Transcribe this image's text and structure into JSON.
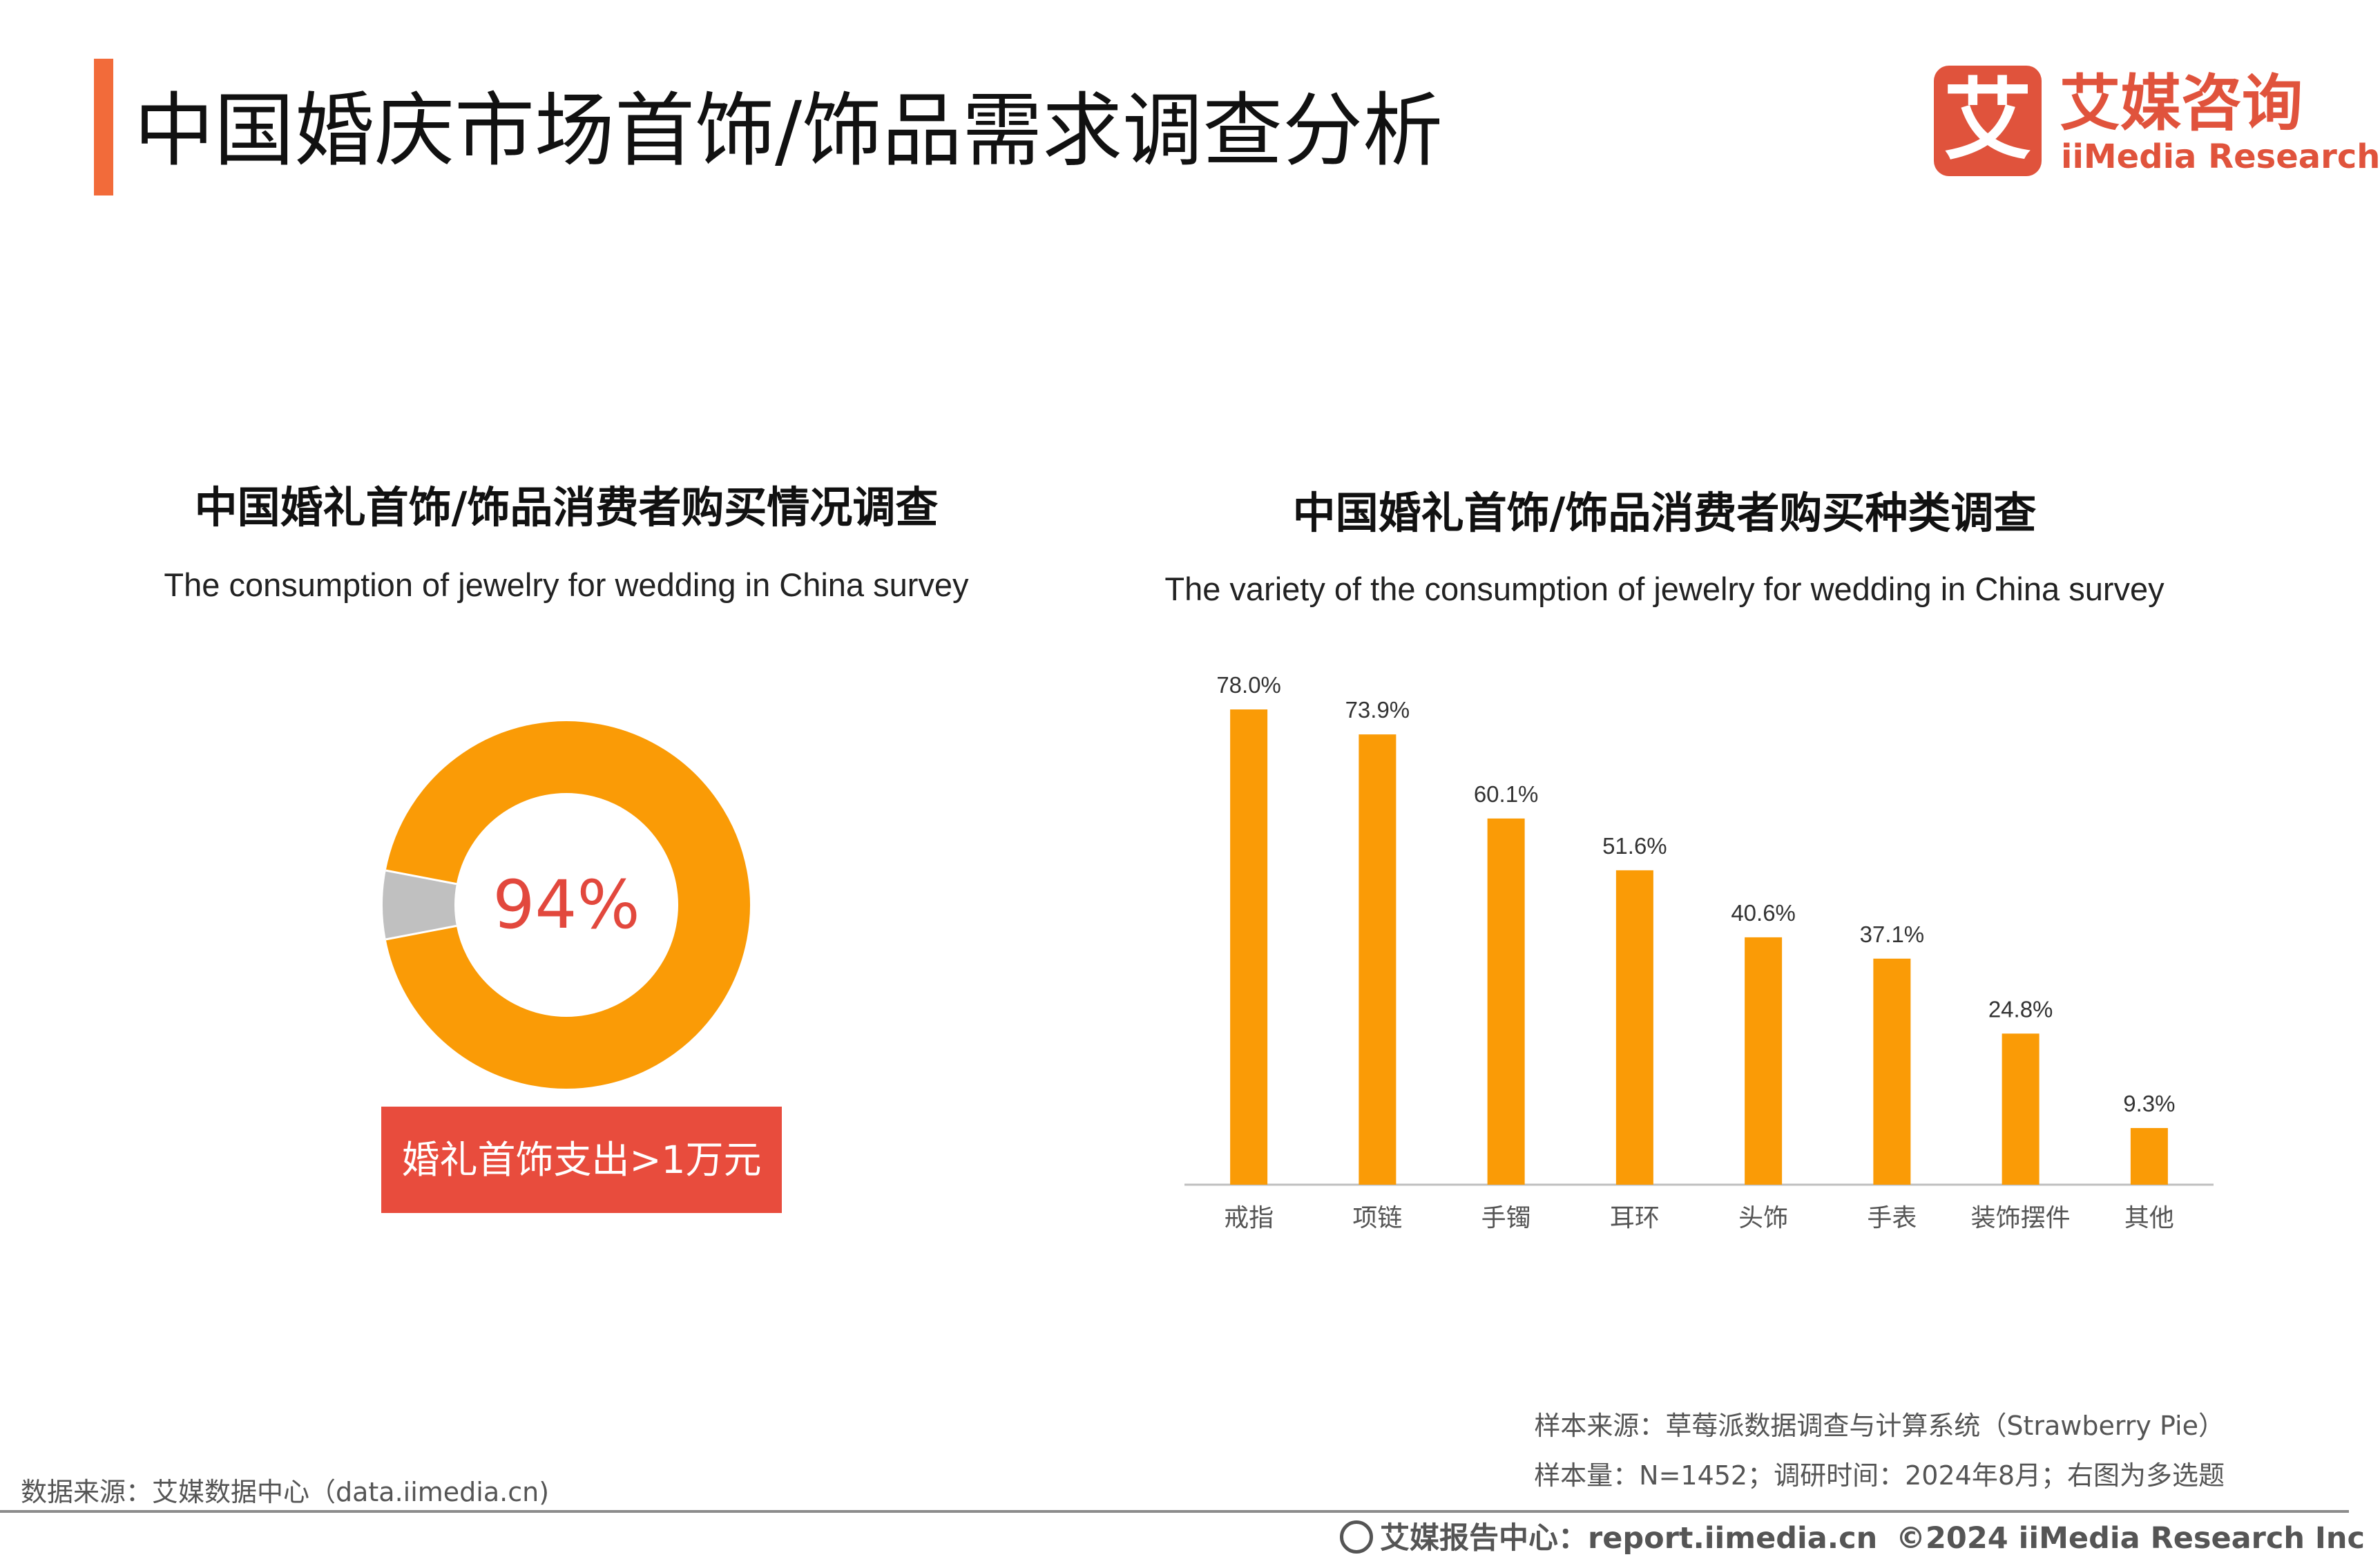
{
  "header": {
    "title": "中国婚庆市场首饰/饰品需求调查分析",
    "logo_char": "艾",
    "logo_cn": "艾媒咨询",
    "logo_en": "iiMedia Research"
  },
  "colors": {
    "accent": "#f26b3a",
    "brand": "#e0533c",
    "bar": "#fa9b06",
    "donut_main": "#fa9b06",
    "donut_rest": "#c0c0c0",
    "highlight_red": "#e84c3d"
  },
  "left_chart": {
    "title_cn": "中国婚礼首饰/饰品消费者购买情况调查",
    "title_en": "The consumption of jewelry for wedding in China survey",
    "center_label": "94%",
    "box_label": "婚礼首饰支出>1万元"
  },
  "right_chart": {
    "title_cn": "中国婚礼首饰/饰品消费者购买种类调查",
    "title_en": "The variety of the consumption of jewelry for wedding in China survey"
  },
  "chart_data": [
    {
      "type": "pie",
      "title": "中国婚礼首饰/饰品消费者购买情况调查",
      "subtitle": "The consumption of jewelry for wedding in China survey",
      "categories": [
        "婚礼首饰支出>1万元",
        ""
      ],
      "values": [
        94,
        6
      ],
      "unit": "%"
    },
    {
      "type": "bar",
      "title": "中国婚礼首饰/饰品消费者购买种类调查",
      "subtitle": "The variety of the consumption of jewelry for wedding in China survey",
      "categories": [
        "戒指",
        "项链",
        "手镯",
        "耳环",
        "头饰",
        "手表",
        "装饰摆件",
        "其他"
      ],
      "values": [
        78.0,
        73.9,
        60.1,
        51.6,
        40.6,
        37.1,
        24.8,
        9.3
      ],
      "labels": [
        "78.0%",
        "73.9%",
        "60.1%",
        "51.6%",
        "40.6%",
        "37.1%",
        "24.8%",
        "9.3%"
      ],
      "ylim": [
        0,
        80
      ],
      "grid": false
    }
  ],
  "notes": {
    "sample_source": "样本来源：草莓派数据调查与计算系统（Strawberry Pie）",
    "sample_size": "样本量：N=1452；调研时间：2024年8月；右图为多选题",
    "data_source": "数据来源：艾媒数据中心（data.iimedia.cn)"
  },
  "footer": {
    "report": "艾媒报告中心：report.iimedia.cn",
    "copyright": "©2024  iiMedia Research Inc"
  }
}
